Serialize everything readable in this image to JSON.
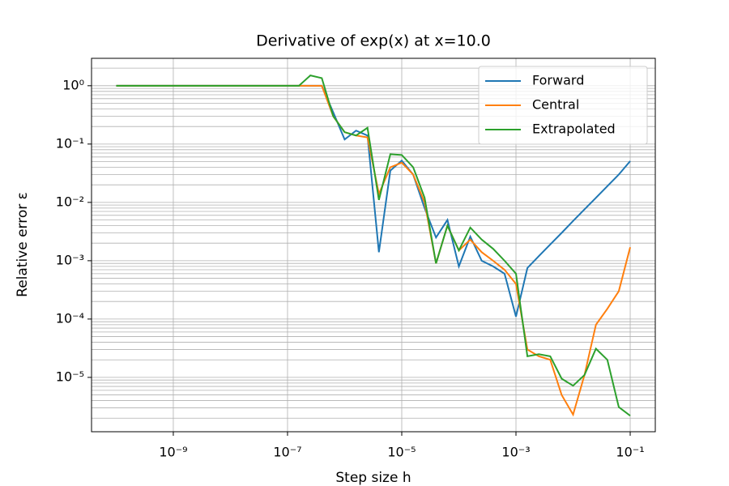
{
  "chart_data": {
    "type": "line",
    "title": "Derivative of exp(x) at x=10.0",
    "xlabel": "Step size h",
    "ylabel": "Relative error ε",
    "log_x": true,
    "log_y": true,
    "grid": true,
    "minor_grid": true,
    "legend": "upper right",
    "x": [
      1e-10,
      1.585e-10,
      2.512e-10,
      3.981e-10,
      6.31e-10,
      1e-09,
      1.585e-09,
      2.512e-09,
      3.981e-09,
      6.31e-09,
      1e-08,
      1.585e-08,
      2.512e-08,
      3.981e-08,
      6.31e-08,
      1e-07,
      1.585e-07,
      2.512e-07,
      3.981e-07,
      6.31e-07,
      1e-06,
      1.585e-06,
      2.512e-06,
      3.981e-06,
      6.31e-06,
      1e-05,
      1.585e-05,
      2.512e-05,
      3.981e-05,
      6.31e-05,
      0.0001,
      0.0001585,
      0.0002512,
      0.0003981,
      0.000631,
      0.001,
      0.001585,
      0.002512,
      0.003981,
      0.00631,
      0.01,
      0.01585,
      0.02512,
      0.03981,
      0.0631,
      0.1
    ],
    "series": [
      {
        "name": "Forward",
        "color": "#1f77b4",
        "values": [
          1,
          1,
          1,
          1,
          1,
          1,
          1,
          1,
          1,
          1,
          1,
          1,
          1,
          1,
          1,
          1,
          1,
          1,
          1,
          0.35,
          0.12,
          0.17,
          0.14,
          0.0014,
          0.035,
          0.052,
          0.03,
          0.008,
          0.0025,
          0.005,
          0.0008,
          0.0026,
          0.001,
          0.0008,
          0.0006,
          0.00011,
          0.00075,
          0.0012,
          0.0019,
          0.003,
          0.0048,
          0.0076,
          0.012,
          0.019,
          0.03,
          0.051
        ]
      },
      {
        "name": "Central",
        "color": "#ff7f0e",
        "values": [
          1,
          1,
          1,
          1,
          1,
          1,
          1,
          1,
          1,
          1,
          1,
          1,
          1,
          1,
          1,
          1,
          1,
          1,
          1,
          0.3,
          0.16,
          0.14,
          0.13,
          0.014,
          0.04,
          0.048,
          0.03,
          0.01,
          0.0009,
          0.004,
          0.0015,
          0.0023,
          0.0014,
          0.001,
          0.0007,
          0.0004,
          3e-05,
          2.3e-05,
          2e-05,
          5e-06,
          2.3e-06,
          1.1e-05,
          8e-05,
          0.00015,
          0.0003,
          0.0017
        ]
      },
      {
        "name": "Extrapolated",
        "color": "#2ca02c",
        "values": [
          1,
          1,
          1,
          1,
          1,
          1,
          1,
          1,
          1,
          1,
          1,
          1,
          1,
          1,
          1,
          1,
          1,
          1.5,
          1.35,
          0.3,
          0.16,
          0.14,
          0.19,
          0.011,
          0.067,
          0.065,
          0.04,
          0.012,
          0.0009,
          0.004,
          0.0015,
          0.0037,
          0.0023,
          0.0016,
          0.001,
          0.0006,
          2.3e-05,
          2.5e-05,
          2.3e-05,
          9.5e-06,
          7.2e-06,
          1.1e-05,
          3.1e-05,
          2e-05,
          3.1e-06,
          2.2e-06
        ]
      }
    ],
    "xlim": [
      3.7e-11,
      0.275
    ],
    "ylim": [
      1.17e-06,
      2.95
    ],
    "xticks": [
      {
        "value": 1e-09,
        "label": "10⁻⁹"
      },
      {
        "value": 1e-07,
        "label": "10⁻⁷"
      },
      {
        "value": 1e-05,
        "label": "10⁻⁵"
      },
      {
        "value": 0.001,
        "label": "10⁻³"
      },
      {
        "value": 0.1,
        "label": "10⁻¹"
      }
    ],
    "yticks": [
      {
        "value": 1e-05,
        "label": "10⁻⁵"
      },
      {
        "value": 0.0001,
        "label": "10⁻⁴"
      },
      {
        "value": 0.001,
        "label": "10⁻³"
      },
      {
        "value": 0.01,
        "label": "10⁻²"
      },
      {
        "value": 0.1,
        "label": "10⁻¹"
      },
      {
        "value": 1,
        "label": "10⁰"
      }
    ]
  }
}
